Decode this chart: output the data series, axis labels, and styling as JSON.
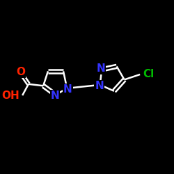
{
  "background_color": "#000000",
  "bond_color": "#ffffff",
  "bond_width": 1.8,
  "atom_colors": {
    "O": "#ff2200",
    "N": "#3333ff",
    "Cl": "#00bb00",
    "C": "#ffffff",
    "H": "#ffffff"
  },
  "font_size_atoms": 11,
  "figsize": [
    2.5,
    2.5
  ],
  "dpi": 100
}
